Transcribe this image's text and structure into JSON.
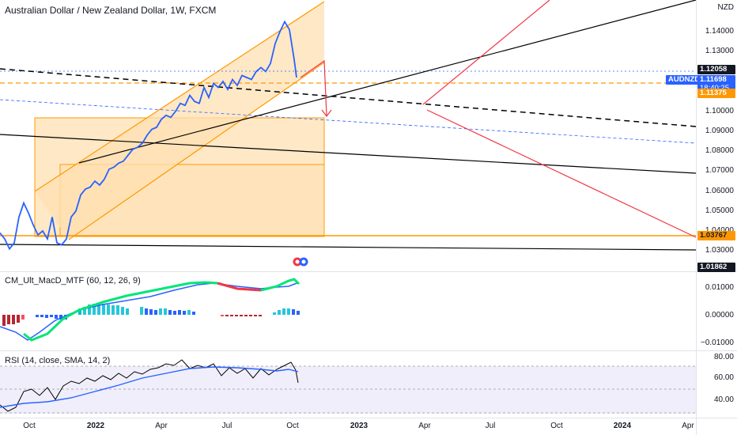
{
  "chart": {
    "title": "Australian Dollar / New Zealand Dollar, 1W, FXCM",
    "currency": "NZD",
    "symbol": "AUDNZD"
  },
  "price_axis": {
    "labels": [
      "1.14000",
      "1.13000",
      "1.12000",
      "1.11000",
      "1.10000",
      "1.09000",
      "1.08000",
      "1.07000",
      "1.06000",
      "1.05000",
      "1.04000",
      "1.03000"
    ],
    "tags": {
      "high": "1.12058",
      "current": "1.11698",
      "countdown": "18:40:25",
      "level_orange": "1.11375",
      "support": "1.03767",
      "low": "1.01862"
    }
  },
  "macd": {
    "title": "CM_Ult_MacD_MTF (60, 12, 26, 9)",
    "labels": [
      "0.01000",
      "0.00000",
      "−0.01000"
    ]
  },
  "rsi": {
    "title": "RSI (14, close, SMA, 14, 2)",
    "labels": [
      "80.00",
      "60.00",
      "40.00"
    ]
  },
  "time_axis": {
    "labels": [
      "Oct",
      "2022",
      "Apr",
      "Jul",
      "Oct",
      "2023",
      "Apr",
      "Jul",
      "Oct",
      "2024",
      "Apr"
    ]
  },
  "colors": {
    "price_line": "#2962ff",
    "channel": "#ff9800",
    "trend_red": "#f23645",
    "macd_fast": "#00e676",
    "macd_slow": "#2962ff",
    "rsi_line": "#000000",
    "rsi_ma": "#2962ff"
  },
  "chart_data": {
    "type": "line",
    "x": [
      0,
      6,
      12,
      18,
      24,
      30,
      36,
      42,
      48,
      54,
      60,
      66,
      72,
      78,
      84,
      90,
      96,
      102,
      108,
      114,
      120,
      126,
      132,
      138,
      144,
      150,
      156,
      162,
      168,
      174,
      180,
      186,
      192,
      198,
      204,
      210,
      216,
      222,
      228,
      234,
      240,
      246,
      252,
      258,
      264,
      270,
      276,
      282,
      288,
      294,
      300,
      306,
      312,
      318,
      324,
      330,
      336,
      342,
      348,
      354,
      360,
      366,
      372,
      375
    ],
    "values": [
      1.039,
      1.036,
      1.031,
      1.034,
      1.047,
      1.054,
      1.049,
      1.043,
      1.038,
      1.04,
      1.036,
      1.047,
      1.034,
      1.033,
      1.036,
      1.047,
      1.05,
      1.058,
      1.061,
      1.062,
      1.065,
      1.063,
      1.066,
      1.071,
      1.072,
      1.074,
      1.075,
      1.078,
      1.081,
      1.082,
      1.084,
      1.088,
      1.091,
      1.092,
      1.096,
      1.098,
      1.097,
      1.1,
      1.104,
      1.103,
      1.108,
      1.105,
      1.104,
      1.112,
      1.107,
      1.114,
      1.112,
      1.115,
      1.111,
      1.116,
      1.113,
      1.118,
      1.117,
      1.116,
      1.12,
      1.122,
      1.12,
      1.124,
      1.134,
      1.14,
      1.145,
      1.141,
      1.126,
      1.117
    ],
    "ylim": [
      1.02,
      1.145
    ]
  }
}
